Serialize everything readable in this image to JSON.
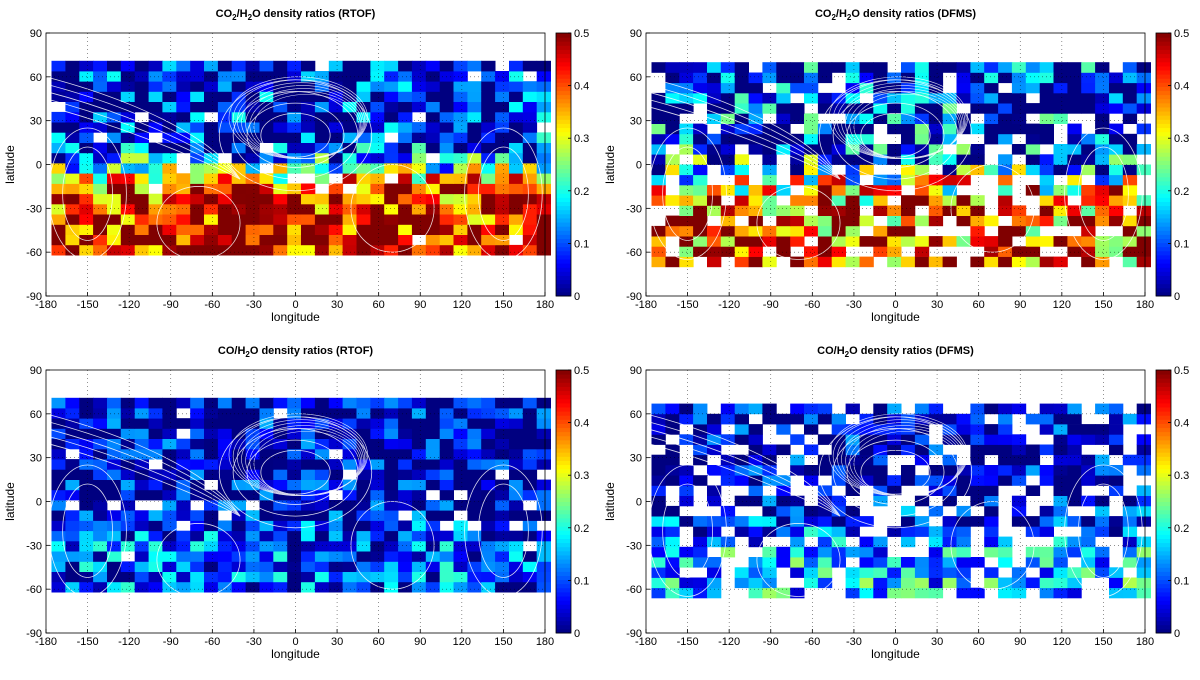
{
  "chart_data": [
    {
      "type": "heatmap",
      "title_parts": [
        "CO",
        "2",
        "/H",
        "2",
        "O density ratios (RTOF)"
      ],
      "xlabel": "longitude",
      "ylabel": "latitude",
      "xlim": [
        -180,
        180
      ],
      "ylim": [
        -90,
        90
      ],
      "xticks": [
        "-180",
        "-150",
        "-120",
        "-90",
        "-60",
        "-30",
        "0",
        "30",
        "60",
        "90",
        "120",
        "150",
        "180"
      ],
      "yticks": [
        "90",
        "60",
        "30",
        "0",
        "-30",
        "-60",
        "-90"
      ],
      "colorbar": {
        "range": [
          0,
          0.5
        ],
        "ticks": [
          "0",
          "0.1",
          "0.2",
          "0.3",
          "0.4",
          "0.5"
        ]
      },
      "data_lat_range": [
        -62,
        68
      ],
      "pattern": {
        "north": 0.04,
        "south": 0.46,
        "transition_lat": -8,
        "noise": 0.16,
        "gap_rate": 0.03,
        "seed": 11
      }
    },
    {
      "type": "heatmap",
      "title_parts": [
        "CO",
        "2",
        "/H",
        "2",
        "O density ratios (DFMS)"
      ],
      "xlabel": "longitude",
      "ylabel": "latitude",
      "xlim": [
        -180,
        180
      ],
      "ylim": [
        -90,
        90
      ],
      "xticks": [
        "-180",
        "-150",
        "-120",
        "-90",
        "-60",
        "-30",
        "0",
        "30",
        "60",
        "90",
        "120",
        "150",
        "180"
      ],
      "yticks": [
        "90",
        "60",
        "30",
        "0",
        "-30",
        "-60",
        "-90"
      ],
      "colorbar": {
        "range": [
          0,
          0.5
        ],
        "ticks": [
          "0",
          "0.1",
          "0.2",
          "0.3",
          "0.4",
          "0.5"
        ]
      },
      "data_lat_range": [
        -70,
        68
      ],
      "pattern": {
        "north": 0.05,
        "south": 0.43,
        "transition_lat": -12,
        "noise": 0.2,
        "gap_rate": 0.2,
        "seed": 27
      }
    },
    {
      "type": "heatmap",
      "title_parts": [
        "CO/H",
        "2",
        "O density ratios (RTOF)"
      ],
      "xlabel": "longitude",
      "ylabel": "latitude",
      "xlim": [
        -180,
        180
      ],
      "ylim": [
        -90,
        90
      ],
      "xticks": [
        "-180",
        "-150",
        "-120",
        "-90",
        "-60",
        "-30",
        "0",
        "30",
        "60",
        "90",
        "120",
        "150",
        "180"
      ],
      "yticks": [
        "90",
        "60",
        "30",
        "0",
        "-30",
        "-60",
        "-90"
      ],
      "colorbar": {
        "range": [
          0,
          0.5
        ],
        "ticks": [
          "0",
          "0.1",
          "0.2",
          "0.3",
          "0.4",
          "0.5"
        ]
      },
      "data_lat_range": [
        -62,
        66
      ],
      "pattern": {
        "north": 0.03,
        "south": 0.1,
        "transition_lat": -20,
        "noise": 0.12,
        "gap_rate": 0.03,
        "seed": 43
      }
    },
    {
      "type": "heatmap",
      "title_parts": [
        "CO/H",
        "2",
        "O density ratios (DFMS)"
      ],
      "xlabel": "longitude",
      "ylabel": "latitude",
      "xlim": [
        -180,
        180
      ],
      "ylim": [
        -90,
        90
      ],
      "xticks": [
        "-180",
        "-150",
        "-120",
        "-90",
        "-60",
        "-30",
        "0",
        "30",
        "60",
        "90",
        "120",
        "150",
        "180"
      ],
      "yticks": [
        "90",
        "60",
        "30",
        "0",
        "-30",
        "-60",
        "-90"
      ],
      "colorbar": {
        "range": [
          0,
          0.5
        ],
        "ticks": [
          "0",
          "0.1",
          "0.2",
          "0.3",
          "0.4",
          "0.5"
        ]
      },
      "data_lat_range": [
        -66,
        66
      ],
      "pattern": {
        "north": 0.03,
        "south": 0.16,
        "transition_lat": -22,
        "noise": 0.12,
        "gap_rate": 0.22,
        "seed": 59
      }
    }
  ]
}
